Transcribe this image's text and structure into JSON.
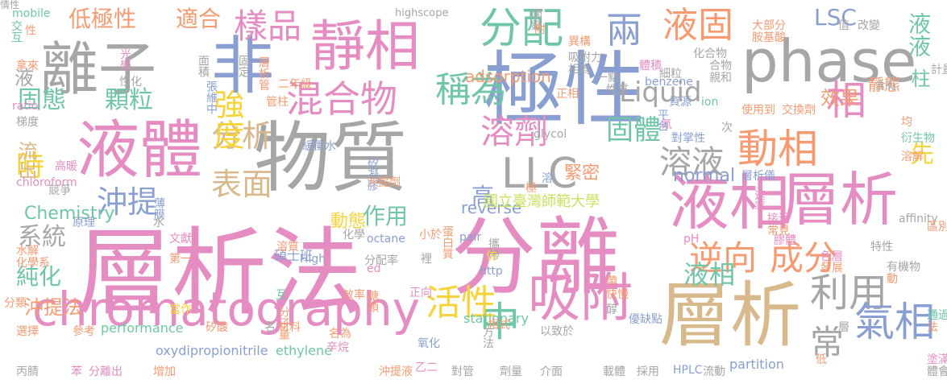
{
  "colors": {
    "pink": "#e58cc2",
    "blue": "#8a9fd1",
    "gray": "#a6a6a6",
    "tan": "#d8b98b",
    "green": "#9fd38d",
    "lime": "#cbe05f",
    "orange": "#f69a71",
    "yellow": "#f7d33a",
    "teal": "#6fc6a6"
  },
  "words": [
    {
      "t": "層析法",
      "c": "pink"
    },
    {
      "t": "分離",
      "c": "pink"
    },
    {
      "t": "物質",
      "c": "gray"
    },
    {
      "t": "極性",
      "c": "blue"
    },
    {
      "t": "phase",
      "c": "gray"
    },
    {
      "t": "液體",
      "c": "pink"
    },
    {
      "t": "離子",
      "c": "gray"
    },
    {
      "t": "非",
      "c": "blue"
    },
    {
      "t": "靜相",
      "c": "pink"
    },
    {
      "t": "chromatography",
      "c": "pink"
    },
    {
      "t": "吸附",
      "c": "pink"
    },
    {
      "t": "層析",
      "c": "tan"
    },
    {
      "t": "液相",
      "c": "pink"
    },
    {
      "t": "層析",
      "c": "pink"
    },
    {
      "t": "分配",
      "c": "teal"
    },
    {
      "t": "兩",
      "c": "blue"
    },
    {
      "t": "液固",
      "c": "orange"
    },
    {
      "t": "樣品",
      "c": "pink"
    },
    {
      "t": "混合物",
      "c": "pink"
    },
    {
      "t": "稱為",
      "c": "teal"
    },
    {
      "t": "動相",
      "c": "orange"
    },
    {
      "t": "相",
      "c": "pink"
    },
    {
      "t": "利用",
      "c": "gray"
    },
    {
      "t": "氣相",
      "c": "blue"
    },
    {
      "t": "常",
      "c": "gray"
    },
    {
      "t": "中",
      "c": "teal"
    },
    {
      "t": "逆向",
      "c": "orange"
    },
    {
      "t": "成分",
      "c": "orange"
    },
    {
      "t": "液相",
      "c": "teal"
    },
    {
      "t": "活性",
      "c": "yellow"
    },
    {
      "t": "LLC",
      "c": "gray"
    },
    {
      "t": "溶液",
      "c": "gray"
    },
    {
      "t": "溶劑",
      "c": "pink"
    },
    {
      "t": "固體",
      "c": "teal"
    },
    {
      "t": "表面",
      "c": "tan"
    },
    {
      "t": "沖提",
      "c": "blue"
    },
    {
      "t": "分析",
      "c": "tan"
    },
    {
      "t": "強度",
      "c": "yellow"
    },
    {
      "t": "時",
      "c": "yellow"
    },
    {
      "t": "固態",
      "c": "teal"
    },
    {
      "t": "顆粒",
      "c": "teal"
    },
    {
      "t": "低極性",
      "c": "orange"
    },
    {
      "t": "適合",
      "c": "orange"
    },
    {
      "t": "Liquid",
      "c": "gray"
    },
    {
      "t": "LSC",
      "c": "blue"
    },
    {
      "t": "液液",
      "c": "teal"
    },
    {
      "t": "先",
      "c": "yellow"
    },
    {
      "t": "系統",
      "c": "gray"
    },
    {
      "t": "純化",
      "c": "teal"
    },
    {
      "t": "作用",
      "c": "teal"
    },
    {
      "t": "流出",
      "c": "tan"
    },
    {
      "t": "沖提法",
      "c": "orange"
    },
    {
      "t": "normal",
      "c": "blue"
    },
    {
      "t": "高",
      "c": "blue"
    },
    {
      "t": "緊密",
      "c": "orange"
    },
    {
      "t": "液",
      "c": "gray"
    },
    {
      "t": "柱",
      "c": "teal"
    },
    {
      "t": "靜態",
      "c": "orange"
    },
    {
      "t": "效果",
      "c": "orange"
    },
    {
      "t": "adsorption",
      "c": "orange"
    },
    {
      "t": "reverse",
      "c": "blue"
    },
    {
      "t": "Chemistry",
      "c": "teal"
    },
    {
      "t": "動態",
      "c": "yellow"
    },
    {
      "t": "國立臺灣師範大學",
      "c": "lime"
    },
    {
      "t": "碩士班",
      "c": "blue"
    },
    {
      "t": "分配率",
      "c": "gray"
    },
    {
      "t": "stationary",
      "c": "teal"
    },
    {
      "t": "performance",
      "c": "teal"
    },
    {
      "t": "oxydipropionitrile",
      "c": "blue"
    },
    {
      "t": "ethylene",
      "c": "teal"
    },
    {
      "t": "partition",
      "c": "blue"
    },
    {
      "t": "HPLC",
      "c": "blue"
    },
    {
      "t": "highscope",
      "c": "gray"
    },
    {
      "t": "mobile",
      "c": "teal"
    },
    {
      "t": "ratio",
      "c": "pink"
    },
    {
      "t": "chloroform",
      "c": "pink"
    },
    {
      "t": "benzene",
      "c": "blue"
    },
    {
      "t": "affinity",
      "c": "gray"
    },
    {
      "t": "glycol",
      "c": "gray"
    },
    {
      "t": "octane",
      "c": "blue"
    },
    {
      "t": "pair",
      "c": "blue"
    },
    {
      "t": "High",
      "c": "blue"
    },
    {
      "t": "http",
      "c": "blue"
    },
    {
      "t": "ion",
      "c": "teal"
    },
    {
      "t": "pH",
      "c": "pink"
    },
    {
      "t": "ed",
      "c": "pink"
    },
    {
      "t": "交互",
      "c": "teal"
    },
    {
      "t": "性",
      "c": "orange"
    },
    {
      "t": "拿來",
      "c": "orange"
    },
    {
      "t": "光學",
      "c": "pink"
    },
    {
      "t": "梯度",
      "c": "gray"
    },
    {
      "t": "性化",
      "c": "gray"
    },
    {
      "t": "面積",
      "c": "gray"
    },
    {
      "t": "固定",
      "c": "gray"
    },
    {
      "t": "層析管",
      "c": "orange"
    },
    {
      "t": "二年級",
      "c": "orange"
    },
    {
      "t": "張維中",
      "c": "blue"
    },
    {
      "t": "管柱",
      "c": "orange"
    },
    {
      "t": "緩衝水",
      "c": "blue"
    },
    {
      "t": "矽凝膠",
      "c": "blue"
    },
    {
      "t": "沖提劑",
      "c": "orange"
    },
    {
      "t": "薄膜",
      "c": "blue"
    },
    {
      "t": "水",
      "c": "gray"
    },
    {
      "t": "原理",
      "c": "blue"
    },
    {
      "t": "競爭",
      "c": "gray"
    },
    {
      "t": "高暖",
      "c": "pink"
    },
    {
      "t": "文獻",
      "c": "pink"
    },
    {
      "t": "第一",
      "c": "orange"
    },
    {
      "t": "水解",
      "c": "orange"
    },
    {
      "t": "化學系",
      "c": "orange"
    },
    {
      "t": "溶質",
      "c": "orange"
    },
    {
      "t": "化學",
      "c": "gray"
    },
    {
      "t": "小於",
      "c": "orange"
    },
    {
      "t": "蛋白質",
      "c": "orange"
    },
    {
      "t": "攜帶",
      "c": "gray"
    },
    {
      "t": "仿",
      "c": "yellow"
    },
    {
      "t": "裡",
      "c": "gray"
    },
    {
      "t": "正向",
      "c": "pink"
    },
    {
      "t": "糖類",
      "c": "orange"
    },
    {
      "t": "效率",
      "c": "orange"
    },
    {
      "t": "互",
      "c": "teal"
    },
    {
      "t": "當作",
      "c": "yellow"
    },
    {
      "t": "矽酸",
      "c": "orange"
    },
    {
      "t": "分子量",
      "c": "orange"
    },
    {
      "t": "材料",
      "c": "orange"
    },
    {
      "t": "名",
      "c": "gray"
    },
    {
      "t": "名為",
      "c": "orange"
    },
    {
      "t": "辛烷",
      "c": "pink"
    },
    {
      "t": "選擇",
      "c": "orange"
    },
    {
      "t": "參考",
      "c": "orange"
    },
    {
      "t": "分類",
      "c": "orange"
    },
    {
      "t": "丙腈",
      "c": "gray"
    },
    {
      "t": "苯",
      "c": "pink"
    },
    {
      "t": "分離出",
      "c": "pink"
    },
    {
      "t": "增加",
      "c": "orange"
    },
    {
      "t": "沖提液",
      "c": "orange"
    },
    {
      "t": "氧化",
      "c": "blue"
    },
    {
      "t": "乙二",
      "c": "pink"
    },
    {
      "t": "對管",
      "c": "gray"
    },
    {
      "t": "劑量",
      "c": "gray"
    },
    {
      "t": "介面",
      "c": "gray"
    },
    {
      "t": "載體",
      "c": "gray"
    },
    {
      "t": "採用",
      "c": "gray"
    },
    {
      "t": "流動",
      "c": "gray"
    },
    {
      "t": "相式",
      "c": "orange"
    },
    {
      "t": "方法",
      "c": "gray"
    },
    {
      "t": "以致於",
      "c": "gray"
    },
    {
      "t": "帶",
      "c": "orange"
    },
    {
      "t": "快慢",
      "c": "orange"
    },
    {
      "t": "醇",
      "c": "gray"
    },
    {
      "t": "優缺點",
      "c": "blue"
    },
    {
      "t": "層",
      "c": "gray"
    },
    {
      "t": "低",
      "c": "orange"
    },
    {
      "t": "塗滿",
      "c": "pink"
    },
    {
      "t": "體會",
      "c": "gray"
    },
    {
      "t": "法",
      "c": "orange"
    },
    {
      "t": "通過",
      "c": "teal"
    },
    {
      "t": "動",
      "c": "orange"
    },
    {
      "t": "有機物",
      "c": "gray"
    },
    {
      "t": "特性",
      "c": "gray"
    },
    {
      "t": "膠體",
      "c": "pink"
    },
    {
      "t": "色層",
      "c": "pink"
    },
    {
      "t": "發展",
      "c": "orange"
    },
    {
      "t": "接近",
      "c": "pink"
    },
    {
      "t": "常見",
      "c": "orange"
    },
    {
      "t": "區別",
      "c": "orange"
    },
    {
      "t": "次",
      "c": "gray"
    },
    {
      "t": "層析儀",
      "c": "blue"
    },
    {
      "t": "速率",
      "c": "pink"
    },
    {
      "t": "溶",
      "c": "blue"
    },
    {
      "t": "極",
      "c": "orange"
    },
    {
      "t": "氰",
      "c": "pink"
    },
    {
      "t": "對掌性",
      "c": "blue"
    },
    {
      "t": "資源",
      "c": "blue"
    },
    {
      "t": "平台",
      "c": "blue"
    },
    {
      "t": "使用到",
      "c": "orange"
    },
    {
      "t": "交換劑",
      "c": "orange"
    },
    {
      "t": "親和",
      "c": "gray"
    },
    {
      "t": "合物",
      "c": "gray"
    },
    {
      "t": "化合物",
      "c": "gray"
    },
    {
      "t": "細粒",
      "c": "gray"
    },
    {
      "t": "體積",
      "c": "pink"
    },
    {
      "t": "性質",
      "c": "gray"
    },
    {
      "t": "一點",
      "c": "gray"
    },
    {
      "t": "吸附力",
      "c": "gray"
    },
    {
      "t": "相為",
      "c": "gray"
    },
    {
      "t": "異構",
      "c": "orange"
    },
    {
      "t": "關鍵",
      "c": "gray"
    },
    {
      "t": "附",
      "c": "orange"
    },
    {
      "t": "正相",
      "c": "orange"
    },
    {
      "t": "大部分",
      "c": "orange"
    },
    {
      "t": "胺基酸",
      "c": "orange"
    },
    {
      "t": "值",
      "c": "gray"
    },
    {
      "t": "改變",
      "c": "gray"
    },
    {
      "t": "含有",
      "c": "gray"
    },
    {
      "t": "計量",
      "c": "gray"
    },
    {
      "t": "均",
      "c": "orange"
    },
    {
      "t": "衍生物",
      "c": "teal"
    },
    {
      "t": "溶解",
      "c": "orange"
    },
    {
      "t": "情性",
      "c": "gray"
    }
  ]
}
